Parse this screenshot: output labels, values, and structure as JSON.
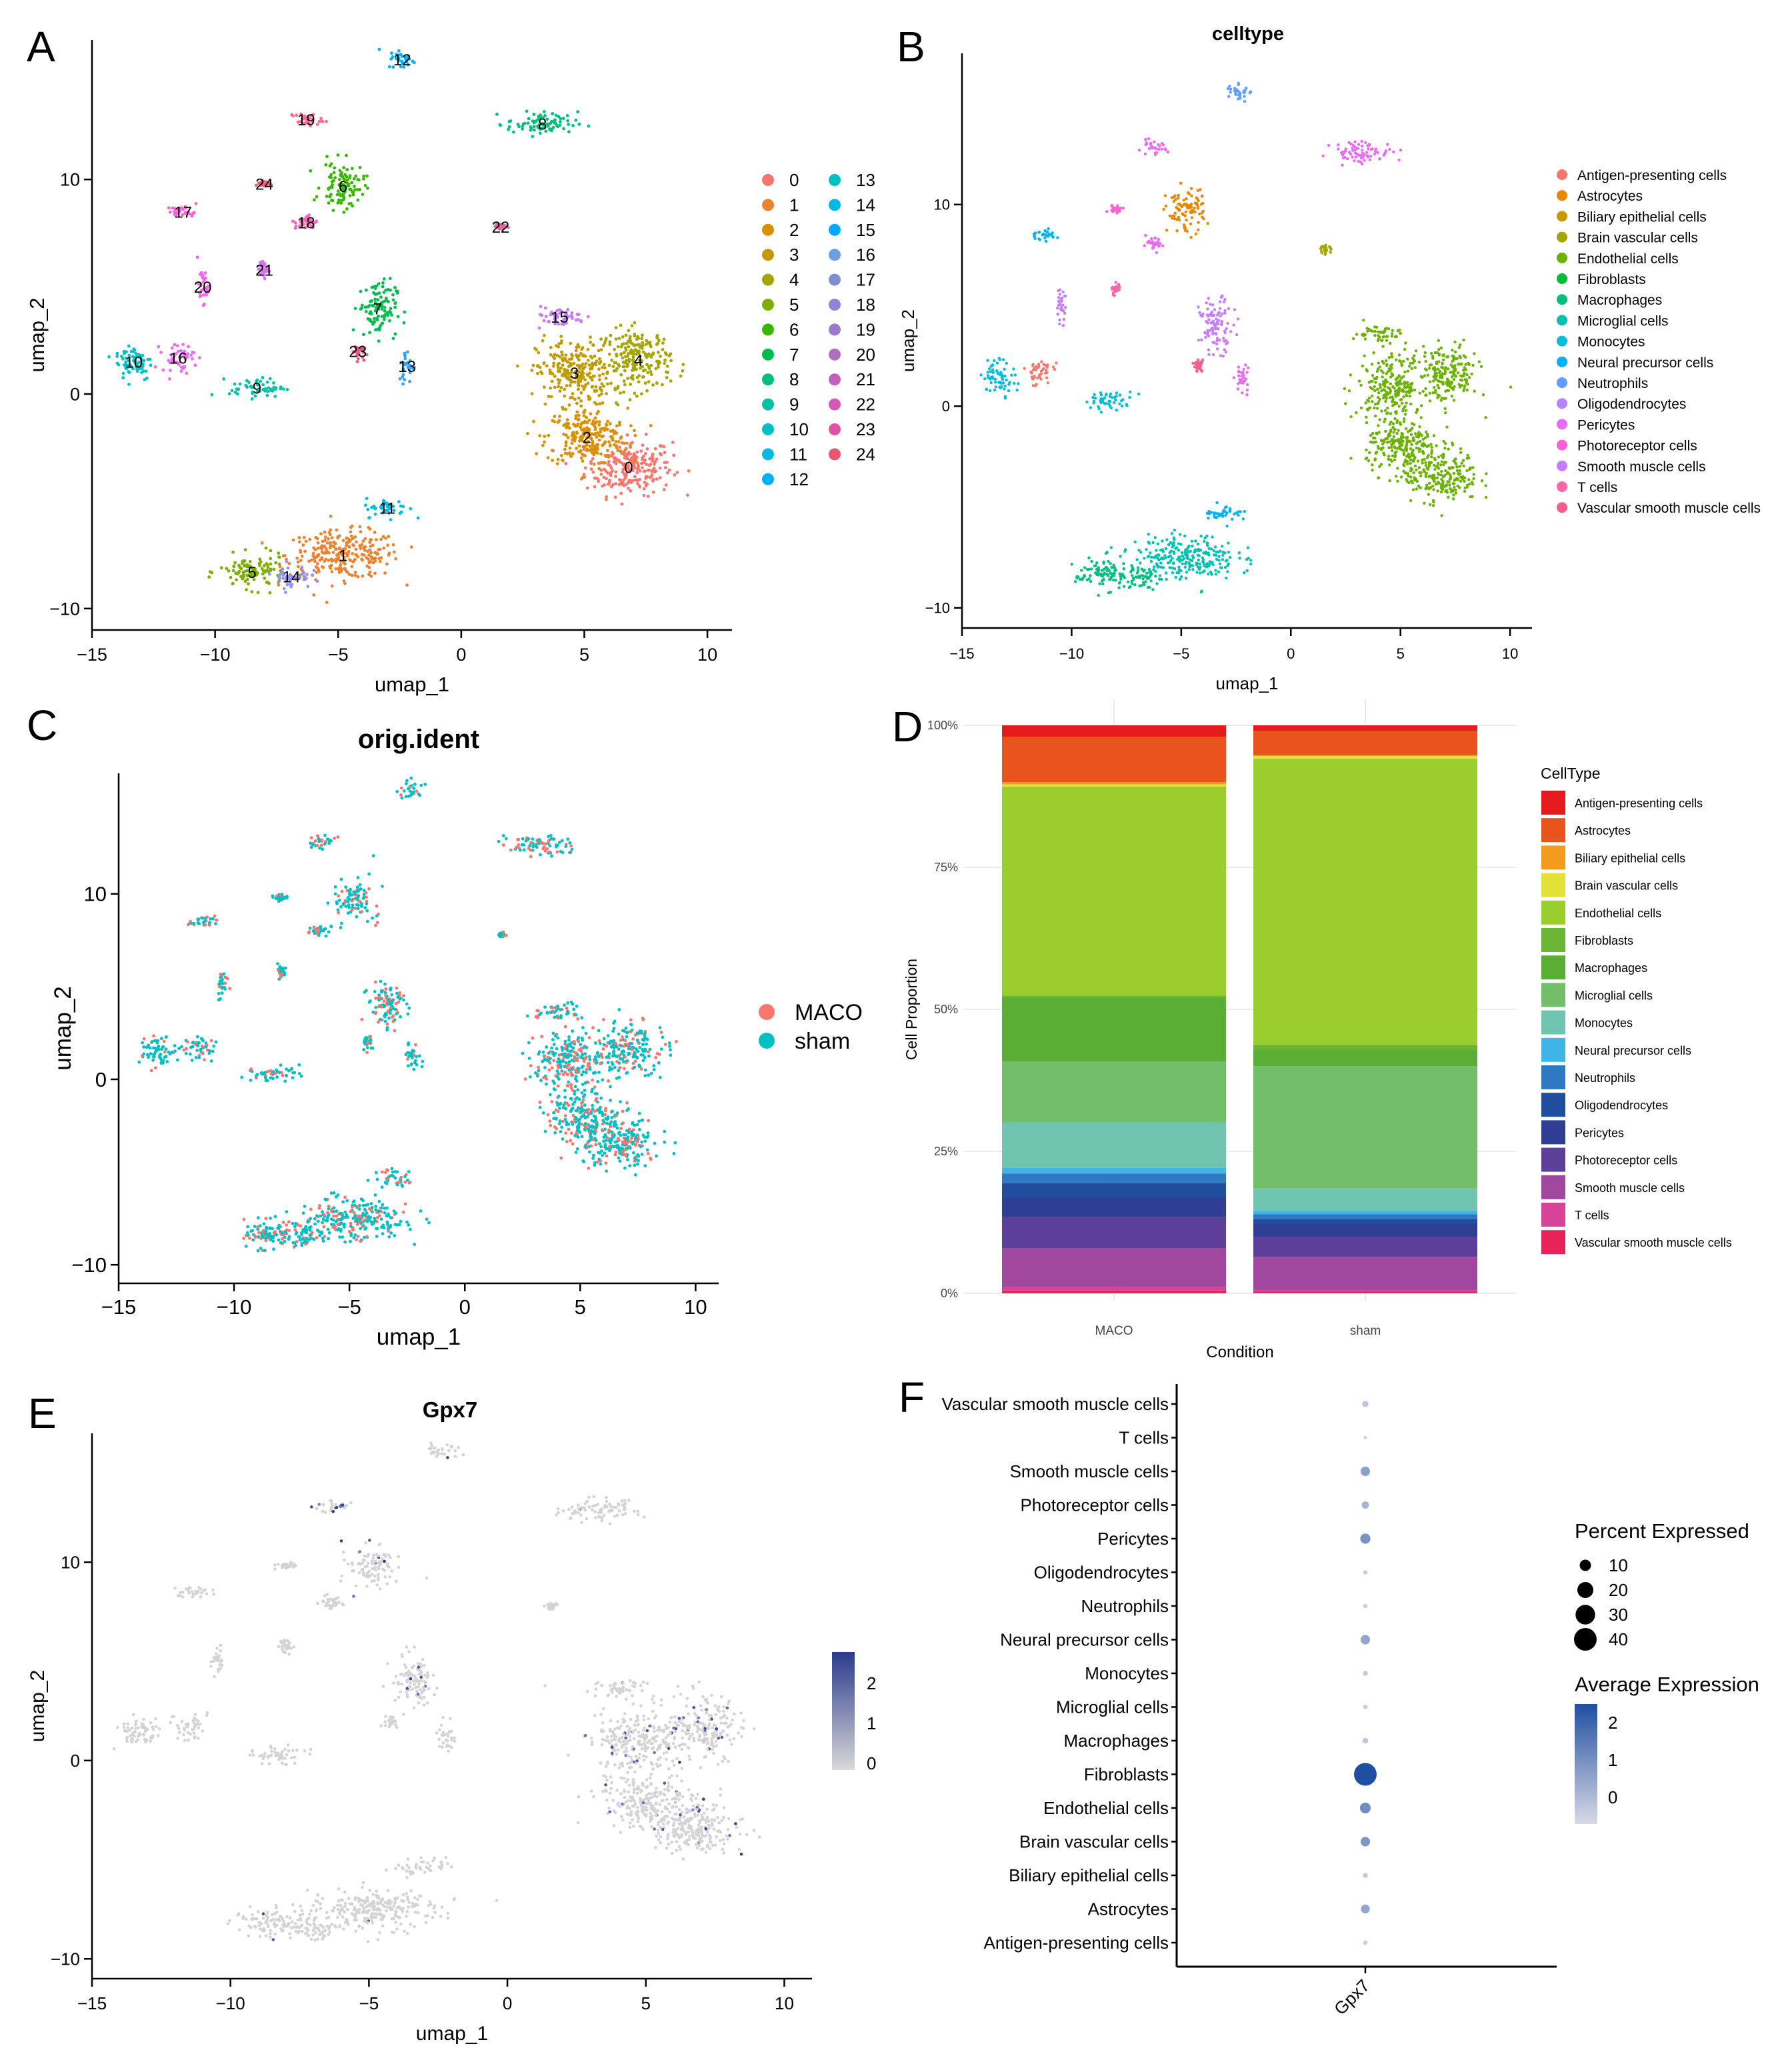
{
  "figure": {
    "panel_letters": [
      "A",
      "B",
      "C",
      "D",
      "E",
      "F"
    ]
  },
  "chart_data": [
    {
      "panel": "A",
      "type": "scatter",
      "title": "",
      "xlabel": "umap_1",
      "ylabel": "umap_2",
      "xlim": [
        -15,
        11
      ],
      "ylim": [
        -11,
        16.5
      ],
      "xticks": [
        -15,
        -10,
        -5,
        0,
        5,
        10
      ],
      "yticks": [
        -10,
        0,
        10
      ],
      "cluster_labels": [
        "0",
        "1",
        "2",
        "3",
        "4",
        "5",
        "6",
        "7",
        "8",
        "9",
        "10",
        "11",
        "12",
        "13",
        "14",
        "15",
        "16",
        "17",
        "18",
        "19",
        "20",
        "21",
        "22",
        "23",
        "24"
      ],
      "cluster_colors": [
        "#F8766D",
        "#EA8331",
        "#D89000",
        "#C09B00",
        "#A3A500",
        "#7CAE00",
        "#39B600",
        "#00BB4E",
        "#00BF7D",
        "#00C1A3",
        "#00BFC4",
        "#00BAE0",
        "#00B0F6",
        "#35A2FF",
        "#9590FF",
        "#C77CFF",
        "#E76BF3",
        "#FA62DB",
        "#FF62BC",
        "#FF6C91",
        "#F564E3",
        "#D671F0",
        "#E0689B",
        "#E55A86",
        "#EC5F73"
      ],
      "legend_colors": [
        "#F8766D",
        "#EA8331",
        "#D89000",
        "#C09B00",
        "#A3A500",
        "#7CAE00",
        "#39B600",
        "#00BB4E",
        "#00BF7D",
        "#00C1A3",
        "#00BFC4",
        "#00BAE0",
        "#00B0F6",
        "#00BFC4",
        "#00B8E7",
        "#00A9FF",
        "#6B9FE0",
        "#7A8FCC",
        "#8B86D6",
        "#9A7CC8",
        "#AE6FC0",
        "#C062BC",
        "#D05AB4",
        "#E052A2",
        "#EC5570"
      ],
      "clusters": [
        {
          "id": "0",
          "cx": 6.8,
          "cy": -3.4,
          "sx": 1.6,
          "sy": 1.2
        },
        {
          "id": "1",
          "cx": -4.8,
          "cy": -7.5,
          "sx": 2.1,
          "sy": 1.0
        },
        {
          "id": "2",
          "cx": 5.1,
          "cy": -2.0,
          "sx": 1.5,
          "sy": 1.2
        },
        {
          "id": "3",
          "cx": 4.6,
          "cy": 1.0,
          "sx": 1.4,
          "sy": 1.4
        },
        {
          "id": "4",
          "cx": 7.2,
          "cy": 1.6,
          "sx": 1.2,
          "sy": 1.3
        },
        {
          "id": "5",
          "cx": -8.5,
          "cy": -8.3,
          "sx": 1.2,
          "sy": 0.7
        },
        {
          "id": "6",
          "cx": -4.8,
          "cy": 9.7,
          "sx": 0.8,
          "sy": 1.0
        },
        {
          "id": "7",
          "cx": -3.4,
          "cy": 4.0,
          "sx": 0.7,
          "sy": 1.2
        },
        {
          "id": "8",
          "cx": 3.3,
          "cy": 12.6,
          "sx": 1.3,
          "sy": 0.5
        },
        {
          "id": "9",
          "cx": -8.3,
          "cy": 0.3,
          "sx": 1.0,
          "sy": 0.4
        },
        {
          "id": "10",
          "cx": -13.3,
          "cy": 1.5,
          "sx": 0.7,
          "sy": 0.8
        },
        {
          "id": "11",
          "cx": -3.0,
          "cy": -5.3,
          "sx": 0.8,
          "sy": 0.4
        },
        {
          "id": "12",
          "cx": -2.4,
          "cy": 15.6,
          "sx": 0.5,
          "sy": 0.4
        },
        {
          "id": "13",
          "cx": -2.2,
          "cy": 1.3,
          "sx": 0.3,
          "sy": 0.7
        },
        {
          "id": "14",
          "cx": -6.9,
          "cy": -8.5,
          "sx": 0.7,
          "sy": 0.5
        },
        {
          "id": "15",
          "cx": 4.0,
          "cy": 3.6,
          "sx": 1.0,
          "sy": 0.4
        },
        {
          "id": "16",
          "cx": -11.5,
          "cy": 1.7,
          "sx": 0.6,
          "sy": 0.6
        },
        {
          "id": "17",
          "cx": -11.3,
          "cy": 8.5,
          "sx": 0.6,
          "sy": 0.25
        },
        {
          "id": "18",
          "cx": -6.3,
          "cy": 8.0,
          "sx": 0.4,
          "sy": 0.3
        },
        {
          "id": "19",
          "cx": -6.3,
          "cy": 12.8,
          "sx": 0.6,
          "sy": 0.3
        },
        {
          "id": "20",
          "cx": -10.5,
          "cy": 5.0,
          "sx": 0.2,
          "sy": 0.7
        },
        {
          "id": "21",
          "cx": -8.0,
          "cy": 5.8,
          "sx": 0.2,
          "sy": 0.3
        },
        {
          "id": "22",
          "cx": 1.6,
          "cy": 7.8,
          "sx": 0.2,
          "sy": 0.15
        },
        {
          "id": "23",
          "cx": -4.2,
          "cy": 2.0,
          "sx": 0.2,
          "sy": 0.3
        },
        {
          "id": "24",
          "cx": -8.0,
          "cy": 9.8,
          "sx": 0.3,
          "sy": 0.15
        }
      ]
    },
    {
      "panel": "B",
      "type": "scatter",
      "title": "celltype",
      "xlabel": "umap_1",
      "ylabel": "umap_2",
      "xlim": [
        -15,
        11
      ],
      "ylim": [
        -11,
        17.5
      ],
      "xticks": [
        -15,
        -10,
        -5,
        0,
        5,
        10
      ],
      "yticks": [
        -10,
        0,
        10
      ],
      "legend": [
        "Antigen-presenting cells",
        "Astrocytes",
        "Biliary epithelial cells",
        "Brain vascular cells",
        "Endothelial cells",
        "Fibroblasts",
        "Macrophages",
        "Microglial cells",
        "Monocytes",
        "Neural precursor cells",
        "Neutrophils",
        "Oligodendrocytes",
        "Pericytes",
        "Photoreceptor cells",
        "Smooth muscle cells",
        "T cells",
        "Vascular smooth muscle cells"
      ],
      "legend_colors": [
        "#F8766D",
        "#E58700",
        "#C99800",
        "#A3A500",
        "#6BB100",
        "#00BA38",
        "#00BF7D",
        "#00C0AF",
        "#00BCD8",
        "#00B0F6",
        "#619CFF",
        "#B983FF",
        "#E76BF3",
        "#FD61D1",
        "#C77CFF",
        "#FF67A4",
        "#F45E8E"
      ]
    },
    {
      "panel": "C",
      "type": "scatter",
      "title": "orig.ident",
      "xlabel": "umap_1",
      "ylabel": "umap_2",
      "xlim": [
        -15,
        11
      ],
      "ylim": [
        -11,
        16.5
      ],
      "xticks": [
        -15,
        -10,
        -5,
        0,
        5,
        10
      ],
      "yticks": [
        -10,
        0,
        10
      ],
      "legend": [
        "MACO",
        "sham"
      ],
      "legend_colors": [
        "#F8766D",
        "#00BFC4"
      ]
    },
    {
      "panel": "D",
      "type": "bar",
      "stacked": true,
      "title": "",
      "xlabel": "Condition",
      "ylabel": "Cell Proportion",
      "categories": [
        "MACO",
        "sham"
      ],
      "yticks": [
        "0%",
        "25%",
        "50%",
        "75%",
        "100%"
      ],
      "legend_title": "CellType",
      "series": [
        {
          "name": "Antigen-presenting cells",
          "color": "#E41A1C",
          "values": [
            2.0,
            1.0
          ]
        },
        {
          "name": "Astrocytes",
          "color": "#E8541C",
          "values": [
            8.0,
            4.3
          ]
        },
        {
          "name": "Biliary epithelial cells",
          "color": "#F39B1E",
          "values": [
            0.4,
            0.2
          ]
        },
        {
          "name": "Brain vascular cells",
          "color": "#E3E03A",
          "values": [
            0.4,
            0.5
          ]
        },
        {
          "name": "Endothelial cells",
          "color": "#9ACD2E",
          "values": [
            36.8,
            51.0
          ]
        },
        {
          "name": "Fibroblasts",
          "color": "#6BB533",
          "values": [
            0.4,
            0.8
          ]
        },
        {
          "name": "Macrophages",
          "color": "#5AAE34",
          "values": [
            11.2,
            3.0
          ]
        },
        {
          "name": "Microglial cells",
          "color": "#72BE6B",
          "values": [
            10.7,
            21.8
          ]
        },
        {
          "name": "Monocytes",
          "color": "#6EC4AE",
          "values": [
            8.0,
            4.0
          ]
        },
        {
          "name": "Neural precursor cells",
          "color": "#3FB5E6",
          "values": [
            1.0,
            0.6
          ]
        },
        {
          "name": "Neutrophils",
          "color": "#2F78C3",
          "values": [
            1.7,
            0.9
          ]
        },
        {
          "name": "Oligodendrocytes",
          "color": "#1F4E9E",
          "values": [
            2.5,
            0.7
          ]
        },
        {
          "name": "Pericytes",
          "color": "#2F3D93",
          "values": [
            3.5,
            2.4
          ]
        },
        {
          "name": "Photoreceptor cells",
          "color": "#5B3F98",
          "values": [
            5.5,
            3.6
          ]
        },
        {
          "name": "Smooth muscle cells",
          "color": "#A1489E",
          "values": [
            6.8,
            5.9
          ]
        },
        {
          "name": "T cells",
          "color": "#D8439A",
          "values": [
            0.6,
            0.3
          ]
        },
        {
          "name": "Vascular smooth muscle cells",
          "color": "#E6245A",
          "values": [
            0.5,
            0.3
          ]
        }
      ]
    },
    {
      "panel": "E",
      "type": "scatter",
      "title": "Gpx7",
      "xlabel": "umap_1",
      "ylabel": "umap_2",
      "xlim": [
        -15,
        11
      ],
      "ylim": [
        -11,
        16.5
      ],
      "xticks": [
        -15,
        -10,
        -5,
        0,
        5,
        10
      ],
      "yticks": [
        -10,
        0,
        10
      ],
      "colorbar_ticks": [
        0,
        1,
        2
      ],
      "colorbar_colors": [
        "#D9D9D9",
        "#2A3A8C"
      ]
    },
    {
      "panel": "F",
      "type": "scatter",
      "subtype": "dotplot",
      "title": "",
      "xlabel": "",
      "ylabel": "",
      "x_categories": [
        "Gpx7"
      ],
      "y_categories": [
        "Vascular smooth muscle cells",
        "T cells",
        "Smooth muscle cells",
        "Photoreceptor cells",
        "Pericytes",
        "Oligodendrocytes",
        "Neutrophils",
        "Neural precursor cells",
        "Monocytes",
        "Microglial cells",
        "Macrophages",
        "Fibroblasts",
        "Endothelial cells",
        "Brain vascular cells",
        "Biliary epithelial cells",
        "Astrocytes",
        "Antigen-presenting cells"
      ],
      "percent_expressed": [
        3,
        1,
        7,
        4,
        8,
        1.5,
        1.5,
        7,
        2,
        1.5,
        2.5,
        40,
        9,
        7,
        2,
        6,
        1.5
      ],
      "average_expression": [
        -0.2,
        -0.5,
        0.6,
        0.2,
        0.9,
        -0.4,
        -0.4,
        0.5,
        -0.3,
        -0.3,
        -0.2,
        2.3,
        1.0,
        0.8,
        -0.3,
        0.5,
        -0.4
      ],
      "size_legend_title": "Percent Expressed",
      "size_legend_values": [
        10,
        20,
        30,
        40
      ],
      "color_legend_title": "Average Expression",
      "color_legend_ticks": [
        0,
        1,
        2
      ],
      "color_range": [
        "#D9D9E6",
        "#1F4FA0"
      ]
    }
  ]
}
